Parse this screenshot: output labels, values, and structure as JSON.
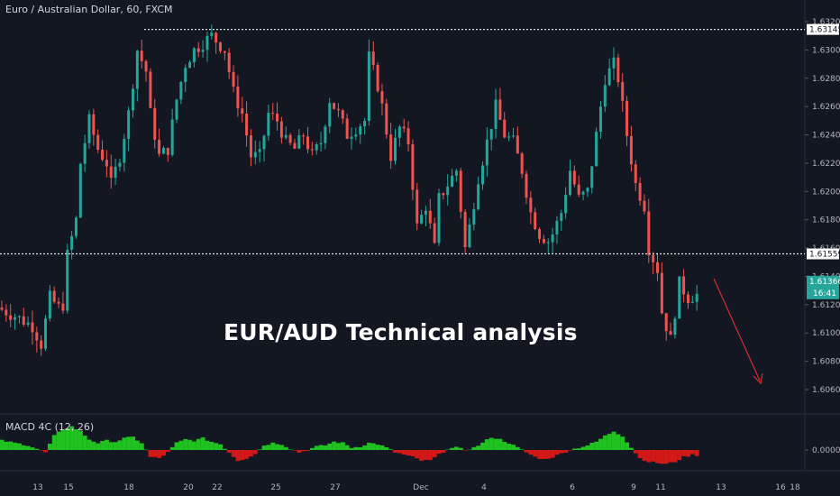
{
  "header": {
    "symbol_title": "Euro / Australian Dollar, 60, FXCM",
    "overlay_text": "EUR/AUD Technical analysis"
  },
  "indicator": {
    "title": "MACD 4C (12, 26)"
  },
  "colors": {
    "background": "#131722",
    "up": "#26a69a",
    "down": "#ef5350",
    "macd_pos": "#1fc21f",
    "macd_neg": "#d31818",
    "arrow": "#d32f2f",
    "price_tag": "#26a69a",
    "level_line": "#e0e3eb"
  },
  "chart_data": {
    "type": "candlestick",
    "title": "Euro / Australian Dollar, 60, FXCM",
    "y_axis_ticks": [
      "1.63200",
      "1.63000",
      "1.62800",
      "1.62600",
      "1.62400",
      "1.62200",
      "1.62000",
      "1.61800",
      "1.61600",
      "1.61400",
      "1.61200",
      "1.61000",
      "1.60800",
      "1.60600"
    ],
    "ylim": [
      1.6044,
      1.6337
    ],
    "x_axis_ticks": [
      "13",
      "15",
      "18",
      "20",
      "22",
      "25",
      "27",
      "Dec",
      "4",
      "6",
      "9",
      "11",
      "13",
      "16",
      "18"
    ],
    "horizontal_levels": [
      "1.63145",
      "1.61559"
    ],
    "last_price": "1.61366",
    "countdown": "16:41",
    "price_path": [
      [
        0,
        1.6118
      ],
      [
        4,
        1.6112
      ],
      [
        8,
        1.6105
      ],
      [
        10,
        1.6092
      ],
      [
        12,
        1.6125
      ],
      [
        14,
        1.6118
      ],
      [
        15,
        1.612
      ],
      [
        16,
        1.6155
      ],
      [
        18,
        1.618
      ],
      [
        19,
        1.622
      ],
      [
        21,
        1.625
      ],
      [
        23,
        1.623
      ],
      [
        25,
        1.622
      ],
      [
        26,
        1.6205
      ],
      [
        28,
        1.6225
      ],
      [
        30,
        1.6255
      ],
      [
        32,
        1.63
      ],
      [
        34,
        1.6285
      ],
      [
        35,
        1.6255
      ],
      [
        37,
        1.6225
      ],
      [
        39,
        1.623
      ],
      [
        41,
        1.6265
      ],
      [
        43,
        1.629
      ],
      [
        45,
        1.63
      ],
      [
        47,
        1.6305
      ],
      [
        49,
        1.631
      ],
      [
        52,
        1.63
      ],
      [
        54,
        1.627
      ],
      [
        56,
        1.6255
      ],
      [
        58,
        1.6225
      ],
      [
        60,
        1.6225
      ],
      [
        62,
        1.6255
      ],
      [
        64,
        1.625
      ],
      [
        66,
        1.6235
      ],
      [
        68,
        1.623
      ],
      [
        70,
        1.624
      ],
      [
        72,
        1.6225
      ],
      [
        74,
        1.6235
      ],
      [
        76,
        1.6265
      ],
      [
        78,
        1.6255
      ],
      [
        80,
        1.624
      ],
      [
        82,
        1.6245
      ],
      [
        84,
        1.625
      ],
      [
        85,
        1.6295
      ],
      [
        87,
        1.6275
      ],
      [
        88,
        1.626
      ],
      [
        90,
        1.6225
      ],
      [
        92,
        1.6245
      ],
      [
        94,
        1.6235
      ],
      [
        96,
        1.6175
      ],
      [
        98,
        1.619
      ],
      [
        100,
        1.616
      ],
      [
        101,
        1.6195
      ],
      [
        103,
        1.6205
      ],
      [
        105,
        1.6215
      ],
      [
        107,
        1.616
      ],
      [
        108,
        1.6175
      ],
      [
        110,
        1.621
      ],
      [
        112,
        1.6235
      ],
      [
        114,
        1.626
      ],
      [
        116,
        1.624
      ],
      [
        118,
        1.6235
      ],
      [
        120,
        1.6215
      ],
      [
        122,
        1.6185
      ],
      [
        124,
        1.617
      ],
      [
        126,
        1.6165
      ],
      [
        127,
        1.617
      ],
      [
        129,
        1.6185
      ],
      [
        131,
        1.6215
      ],
      [
        133,
        1.6195
      ],
      [
        135,
        1.62
      ],
      [
        137,
        1.624
      ],
      [
        139,
        1.628
      ],
      [
        141,
        1.629
      ],
      [
        142,
        1.628
      ],
      [
        144,
        1.624
      ],
      [
        146,
        1.6205
      ],
      [
        148,
        1.619
      ],
      [
        149,
        1.616
      ],
      [
        151,
        1.6145
      ],
      [
        152,
        1.6115
      ],
      [
        154,
        1.6095
      ],
      [
        156,
        1.6135
      ],
      [
        158,
        1.6125
      ],
      [
        160,
        1.6127
      ]
    ],
    "macd": [
      [
        0,
        0.4
      ],
      [
        6,
        0.2
      ],
      [
        10,
        -0.1
      ],
      [
        12,
        0.6
      ],
      [
        14,
        0.9
      ],
      [
        16,
        1.0
      ],
      [
        18,
        0.8
      ],
      [
        20,
        0.45
      ],
      [
        22,
        0.3
      ],
      [
        24,
        0.4
      ],
      [
        26,
        0.35
      ],
      [
        28,
        0.5
      ],
      [
        30,
        0.55
      ],
      [
        32,
        0.3
      ],
      [
        34,
        -0.3
      ],
      [
        36,
        -0.35
      ],
      [
        38,
        -0.1
      ],
      [
        40,
        0.3
      ],
      [
        42,
        0.45
      ],
      [
        44,
        0.4
      ],
      [
        46,
        0.5
      ],
      [
        48,
        0.35
      ],
      [
        50,
        0.25
      ],
      [
        52,
        -0.1
      ],
      [
        54,
        -0.45
      ],
      [
        56,
        -0.35
      ],
      [
        58,
        -0.15
      ],
      [
        60,
        0.2
      ],
      [
        62,
        0.3
      ],
      [
        64,
        0.25
      ],
      [
        66,
        0.05
      ],
      [
        68,
        -0.1
      ],
      [
        70,
        0.0
      ],
      [
        72,
        0.15
      ],
      [
        74,
        0.2
      ],
      [
        76,
        0.35
      ],
      [
        78,
        0.3
      ],
      [
        80,
        0.1
      ],
      [
        82,
        0.15
      ],
      [
        84,
        0.3
      ],
      [
        86,
        0.25
      ],
      [
        88,
        0.1
      ],
      [
        90,
        -0.1
      ],
      [
        92,
        -0.2
      ],
      [
        94,
        -0.3
      ],
      [
        96,
        -0.45
      ],
      [
        98,
        -0.45
      ],
      [
        100,
        -0.2
      ],
      [
        102,
        0.05
      ],
      [
        104,
        0.1
      ],
      [
        106,
        0.0
      ],
      [
        108,
        0.1
      ],
      [
        110,
        0.3
      ],
      [
        112,
        0.55
      ],
      [
        114,
        0.45
      ],
      [
        116,
        0.3
      ],
      [
        118,
        0.1
      ],
      [
        120,
        -0.1
      ],
      [
        122,
        -0.3
      ],
      [
        124,
        -0.4
      ],
      [
        126,
        -0.3
      ],
      [
        128,
        -0.15
      ],
      [
        130,
        0.0
      ],
      [
        132,
        0.1
      ],
      [
        134,
        0.2
      ],
      [
        136,
        0.35
      ],
      [
        138,
        0.6
      ],
      [
        140,
        0.8
      ],
      [
        142,
        0.6
      ],
      [
        144,
        0.1
      ],
      [
        146,
        -0.35
      ],
      [
        148,
        -0.5
      ],
      [
        150,
        -0.55
      ],
      [
        152,
        -0.6
      ],
      [
        154,
        -0.5
      ],
      [
        156,
        -0.3
      ],
      [
        158,
        -0.2
      ],
      [
        160,
        -0.25
      ]
    ]
  }
}
